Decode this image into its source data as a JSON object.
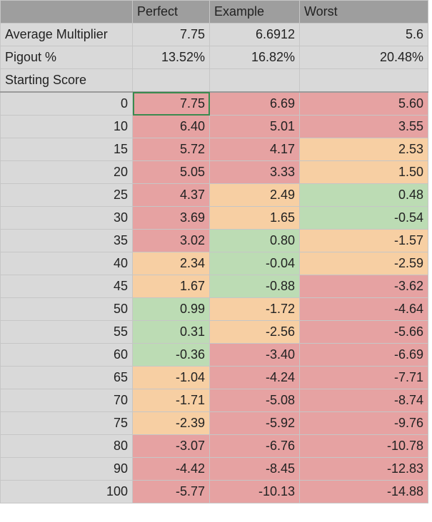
{
  "header": {
    "corner": "",
    "cols": [
      "Perfect",
      "Example",
      "Worst"
    ]
  },
  "meta_rows": [
    {
      "label": "Average Multiplier",
      "values": [
        "7.75",
        "6.6912",
        "5.6"
      ]
    },
    {
      "label": "Pigout %",
      "values": [
        "13.52%",
        "16.82%",
        "20.48%"
      ]
    }
  ],
  "section_label": "Starting Score",
  "colors": {
    "red": "#e6a2a2",
    "orange": "#f7cfa3",
    "green": "#bcdcb4",
    "header": "#9e9e9e",
    "meta": "#d9d9d9"
  },
  "rows": [
    {
      "score": "0",
      "values": [
        "7.75",
        "6.69",
        "5.60"
      ],
      "colors": [
        "red",
        "red",
        "red"
      ]
    },
    {
      "score": "10",
      "values": [
        "6.40",
        "5.01",
        "3.55"
      ],
      "colors": [
        "red",
        "red",
        "red"
      ]
    },
    {
      "score": "15",
      "values": [
        "5.72",
        "4.17",
        "2.53"
      ],
      "colors": [
        "red",
        "red",
        "orange"
      ]
    },
    {
      "score": "20",
      "values": [
        "5.05",
        "3.33",
        "1.50"
      ],
      "colors": [
        "red",
        "red",
        "orange"
      ]
    },
    {
      "score": "25",
      "values": [
        "4.37",
        "2.49",
        "0.48"
      ],
      "colors": [
        "red",
        "orange",
        "green"
      ]
    },
    {
      "score": "30",
      "values": [
        "3.69",
        "1.65",
        "-0.54"
      ],
      "colors": [
        "red",
        "orange",
        "green"
      ]
    },
    {
      "score": "35",
      "values": [
        "3.02",
        "0.80",
        "-1.57"
      ],
      "colors": [
        "red",
        "green",
        "orange"
      ]
    },
    {
      "score": "40",
      "values": [
        "2.34",
        "-0.04",
        "-2.59"
      ],
      "colors": [
        "orange",
        "green",
        "orange"
      ]
    },
    {
      "score": "45",
      "values": [
        "1.67",
        "-0.88",
        "-3.62"
      ],
      "colors": [
        "orange",
        "green",
        "red"
      ]
    },
    {
      "score": "50",
      "values": [
        "0.99",
        "-1.72",
        "-4.64"
      ],
      "colors": [
        "green",
        "orange",
        "red"
      ]
    },
    {
      "score": "55",
      "values": [
        "0.31",
        "-2.56",
        "-5.66"
      ],
      "colors": [
        "green",
        "orange",
        "red"
      ]
    },
    {
      "score": "60",
      "values": [
        "-0.36",
        "-3.40",
        "-6.69"
      ],
      "colors": [
        "green",
        "red",
        "red"
      ]
    },
    {
      "score": "65",
      "values": [
        "-1.04",
        "-4.24",
        "-7.71"
      ],
      "colors": [
        "orange",
        "red",
        "red"
      ]
    },
    {
      "score": "70",
      "values": [
        "-1.71",
        "-5.08",
        "-8.74"
      ],
      "colors": [
        "orange",
        "red",
        "red"
      ]
    },
    {
      "score": "75",
      "values": [
        "-2.39",
        "-5.92",
        "-9.76"
      ],
      "colors": [
        "orange",
        "red",
        "red"
      ]
    },
    {
      "score": "80",
      "values": [
        "-3.07",
        "-6.76",
        "-10.78"
      ],
      "colors": [
        "red",
        "red",
        "red"
      ]
    },
    {
      "score": "90",
      "values": [
        "-4.42",
        "-8.45",
        "-12.83"
      ],
      "colors": [
        "red",
        "red",
        "red"
      ]
    },
    {
      "score": "100",
      "values": [
        "-5.77",
        "-10.13",
        "-14.88"
      ],
      "colors": [
        "red",
        "red",
        "red"
      ]
    }
  ]
}
